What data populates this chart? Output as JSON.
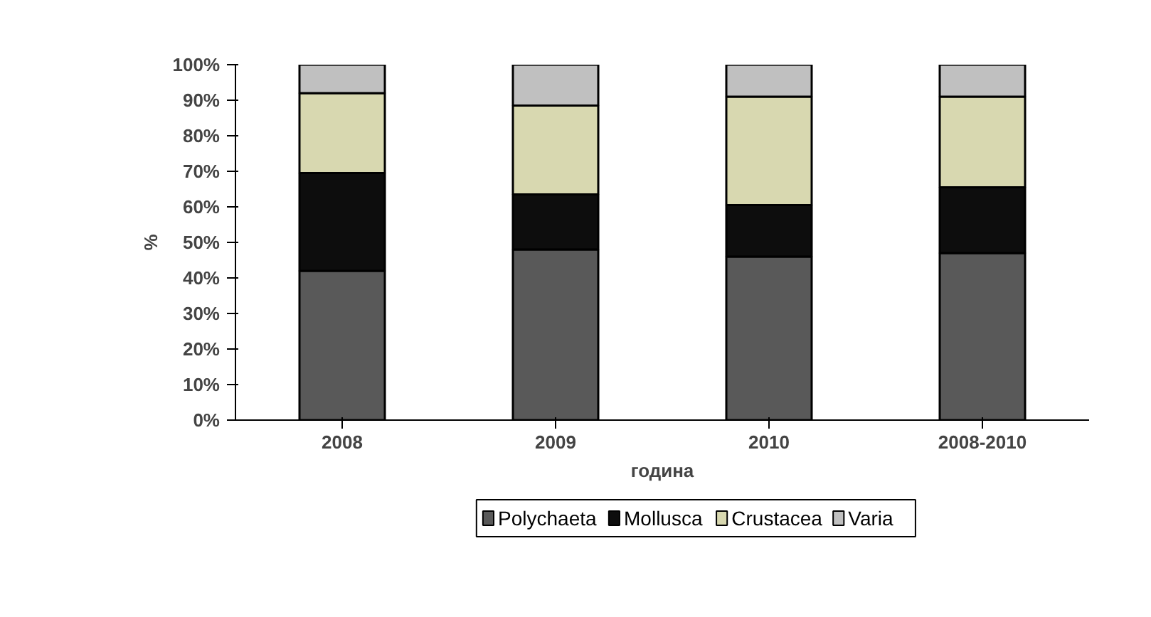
{
  "chart_data": {
    "type": "bar",
    "stacked": true,
    "xlabel": "година",
    "ylabel": "%",
    "categories": [
      "2008",
      "2009",
      "2010",
      "2008-2010"
    ],
    "series": [
      {
        "name": "Polychaeta",
        "color": "#595959",
        "values": [
          42,
          48,
          46,
          47
        ]
      },
      {
        "name": "Mollusca",
        "color": "#0d0d0d",
        "values": [
          27.5,
          15.5,
          14.5,
          18.5
        ]
      },
      {
        "name": "Crustacea",
        "color": "#d8d8b0",
        "values": [
          22.5,
          25,
          30.5,
          25.5
        ]
      },
      {
        "name": "Varia",
        "color": "#c0c0c0",
        "values": [
          8,
          11.5,
          9,
          9
        ]
      }
    ],
    "ylim": [
      0,
      100
    ],
    "yticks": [
      {
        "value": 0,
        "label": "0%"
      },
      {
        "value": 10,
        "label": "10%"
      },
      {
        "value": 20,
        "label": "20%"
      },
      {
        "value": 30,
        "label": "30%"
      },
      {
        "value": 40,
        "label": "40%"
      },
      {
        "value": 50,
        "label": "50%"
      },
      {
        "value": 60,
        "label": "60%"
      },
      {
        "value": 70,
        "label": "70%"
      },
      {
        "value": 80,
        "label": "80%"
      },
      {
        "value": 90,
        "label": "90%"
      },
      {
        "value": 100,
        "label": "100%"
      }
    ],
    "grid": false,
    "legend": "bottom"
  }
}
